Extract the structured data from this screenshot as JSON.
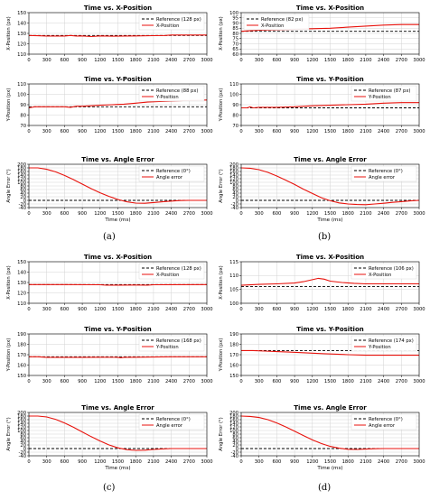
{
  "figure": {
    "panel_labels": [
      "(a)",
      "(b)",
      "(c)",
      "(d)"
    ]
  },
  "chart_data": [
    {
      "type": "line",
      "panel": "(a)",
      "title": "Time vs. X-Position",
      "xlabel": "",
      "ylabel": "X-Position (px)",
      "xlim": [
        0,
        3000
      ],
      "ylim": [
        110,
        150
      ],
      "xticks": [
        0,
        300,
        600,
        900,
        1200,
        1500,
        1800,
        2100,
        2400,
        2700,
        3000
      ],
      "yticks": [
        110,
        120,
        130,
        140,
        150
      ],
      "grid": true,
      "legend_position": "top-right",
      "series": [
        {
          "name": "Reference (128 px)",
          "style": "dashed",
          "color": "#000000",
          "x": [
            0,
            3000
          ],
          "y": [
            128,
            128
          ]
        },
        {
          "name": "X-Position",
          "style": "solid",
          "color": "#e8120c",
          "x": [
            0,
            150,
            300,
            600,
            700,
            800,
            900,
            1050,
            1200,
            1400,
            1600,
            1800,
            2100,
            2300,
            2400,
            2700,
            3000
          ],
          "y": [
            128,
            127.7,
            127.5,
            127.5,
            128,
            127.5,
            127.6,
            127,
            127.6,
            127.3,
            127.5,
            127.6,
            127.8,
            128,
            128.4,
            128.4,
            128.4
          ]
        }
      ]
    },
    {
      "type": "line",
      "panel": "(a)",
      "title": "Time vs. Y-Position",
      "xlabel": "",
      "ylabel": "Y-Position (px)",
      "xlim": [
        0,
        3000
      ],
      "ylim": [
        70,
        110
      ],
      "xticks": [
        0,
        300,
        600,
        900,
        1200,
        1500,
        1800,
        2100,
        2400,
        2700,
        3000
      ],
      "yticks": [
        70,
        80,
        90,
        100,
        110
      ],
      "grid": true,
      "legend_position": "top-right",
      "series": [
        {
          "name": "Reference (88 px)",
          "style": "dashed",
          "color": "#000000",
          "x": [
            0,
            3000
          ],
          "y": [
            88,
            88
          ]
        },
        {
          "name": "Y-Position",
          "style": "solid",
          "color": "#e8120c",
          "x": [
            0,
            100,
            300,
            600,
            700,
            800,
            900,
            1050,
            1200,
            1400,
            1600,
            1800,
            2000,
            2200,
            2400,
            2600,
            3000
          ],
          "y": [
            87,
            88,
            88,
            88,
            87.5,
            88.5,
            88.5,
            89,
            89.5,
            90,
            90.5,
            91.5,
            92.5,
            93,
            93.5,
            94,
            94.5
          ]
        }
      ]
    },
    {
      "type": "line",
      "panel": "(a)",
      "title": "Time vs. Angle Error",
      "xlabel": "Time (ms)",
      "ylabel": "Angle Error (°)",
      "xlim": [
        0,
        3000
      ],
      "ylim": [
        -40,
        200
      ],
      "xticks": [
        0,
        300,
        600,
        900,
        1200,
        1500,
        1800,
        2100,
        2400,
        2700,
        3000
      ],
      "yticks": [
        -40,
        -20,
        0,
        20,
        40,
        60,
        80,
        100,
        120,
        140,
        160,
        180,
        200
      ],
      "grid": true,
      "legend_position": "top-right",
      "series": [
        {
          "name": "Reference (0°)",
          "style": "dashed",
          "color": "#000000",
          "x": [
            0,
            3000
          ],
          "y": [
            0,
            0
          ]
        },
        {
          "name": "Angle error",
          "style": "solid",
          "color": "#e8120c",
          "x": [
            0,
            150,
            300,
            450,
            600,
            750,
            900,
            1050,
            1200,
            1350,
            1500,
            1650,
            1800,
            1950,
            2100,
            2250,
            2400,
            2550,
            2700,
            3000
          ],
          "y": [
            180,
            180,
            172,
            158,
            138,
            115,
            90,
            65,
            42,
            22,
            5,
            -8,
            -15,
            -16,
            -12,
            -8,
            -4,
            -1,
            0,
            0
          ]
        }
      ]
    },
    {
      "type": "line",
      "panel": "(b)",
      "title": "Time vs. X-Position",
      "xlabel": "",
      "ylabel": "X-Position (px)",
      "xlim": [
        0,
        3000
      ],
      "ylim": [
        110,
        150
      ],
      "xticks": [
        0,
        300,
        600,
        900,
        1200,
        1500,
        1800,
        2100,
        2400,
        2700,
        3000
      ],
      "yticks": [
        110,
        120,
        130,
        140,
        150
      ],
      "grid": true,
      "legend_position": "top-right",
      "series": [
        {
          "name": "Reference (128 px)",
          "style": "dashed",
          "color": "#000000",
          "x": [
            0,
            3000
          ],
          "y": [
            128,
            128
          ]
        },
        {
          "name": "X-Position",
          "style": "solid",
          "color": "#e8120c",
          "x": [
            0,
            600,
            1200,
            1300,
            1500,
            1800,
            2000,
            2100,
            2400,
            3000
          ],
          "y": [
            128,
            128,
            127.8,
            127.5,
            127.5,
            127.6,
            127.5,
            127.8,
            127.9,
            128
          ]
        }
      ]
    },
    {
      "type": "line",
      "panel": "(b)",
      "title": "Time vs. Y-Position",
      "xlabel": "",
      "ylabel": "Y-Position (px)",
      "xlim": [
        0,
        3000
      ],
      "ylim": [
        150,
        190
      ],
      "xticks": [
        0,
        300,
        600,
        900,
        1200,
        1500,
        1800,
        2100,
        2400,
        2700,
        3000
      ],
      "yticks": [
        150,
        160,
        170,
        180,
        190
      ],
      "grid": true,
      "legend_position": "top-right",
      "series": [
        {
          "name": "Reference (168 px)",
          "style": "dashed",
          "color": "#000000",
          "x": [
            0,
            3000
          ],
          "y": [
            168,
            168
          ]
        },
        {
          "name": "Y-Position",
          "style": "solid",
          "color": "#e8120c",
          "x": [
            0,
            150,
            300,
            600,
            900,
            1200,
            1500,
            1550,
            1600,
            1800,
            2100,
            2400,
            2700,
            3000
          ],
          "y": [
            168,
            168,
            167.5,
            167.5,
            167.5,
            167.6,
            167.5,
            167,
            167.5,
            167.6,
            167.7,
            168,
            168,
            168
          ]
        }
      ]
    },
    {
      "type": "line",
      "panel": "(b)",
      "title": "Time vs. Angle Error",
      "xlabel": "Time (ms)",
      "ylabel": "Angle Error (°)",
      "xlim": [
        0,
        3000
      ],
      "ylim": [
        -40,
        200
      ],
      "xticks": [
        0,
        300,
        600,
        900,
        1200,
        1500,
        1800,
        2100,
        2400,
        2700,
        3000
      ],
      "yticks": [
        -40,
        -20,
        0,
        20,
        40,
        60,
        80,
        100,
        120,
        140,
        160,
        180,
        200
      ],
      "grid": true,
      "legend_position": "top-right",
      "series": [
        {
          "name": "Reference (0°)",
          "style": "dashed",
          "color": "#000000",
          "x": [
            0,
            3000
          ],
          "y": [
            0,
            0
          ]
        },
        {
          "name": "Angle error",
          "style": "solid",
          "color": "#e8120c",
          "x": [
            0,
            150,
            300,
            450,
            600,
            750,
            900,
            1050,
            1200,
            1350,
            1500,
            1650,
            1800,
            1950,
            2100,
            2250,
            2400,
            2550,
            3000
          ],
          "y": [
            180,
            180,
            175,
            162,
            142,
            118,
            92,
            66,
            42,
            20,
            4,
            -6,
            -10,
            -9,
            -5,
            -2,
            0,
            0,
            0
          ]
        }
      ]
    },
    {
      "type": "line",
      "panel": "(c)",
      "title": "Time vs. X-Position",
      "xlabel": "",
      "ylabel": "X-Position (px)",
      "xlim": [
        0,
        3000
      ],
      "ylim": [
        60,
        100
      ],
      "xticks": [
        0,
        300,
        600,
        900,
        1200,
        1500,
        1800,
        2100,
        2400,
        2700,
        3000
      ],
      "yticks": [
        60,
        65,
        70,
        75,
        80,
        85,
        90,
        95,
        100
      ],
      "grid": true,
      "legend_position": "top-left",
      "series": [
        {
          "name": "Reference (82 px)",
          "style": "dashed",
          "color": "#000000",
          "x": [
            0,
            3000
          ],
          "y": [
            82,
            82
          ]
        },
        {
          "name": "X-Position",
          "style": "solid",
          "color": "#e8120c",
          "x": [
            0,
            150,
            300,
            600,
            900,
            1200,
            1500,
            1800,
            2100,
            2400,
            2700,
            3000
          ],
          "y": [
            82,
            82.5,
            83,
            83.5,
            84,
            84.5,
            85,
            86,
            87,
            88,
            88.5,
            88.5
          ]
        }
      ]
    },
    {
      "type": "line",
      "panel": "(c)",
      "title": "Time vs. Y-Position",
      "xlabel": "",
      "ylabel": "Y-Position (px)",
      "xlim": [
        0,
        3000
      ],
      "ylim": [
        70,
        110
      ],
      "xticks": [
        0,
        300,
        600,
        900,
        1200,
        1500,
        1800,
        2100,
        2400,
        2700,
        3000
      ],
      "yticks": [
        70,
        80,
        90,
        100,
        110
      ],
      "grid": true,
      "legend_position": "top-right",
      "series": [
        {
          "name": "Reference (87 px)",
          "style": "dashed",
          "color": "#000000",
          "x": [
            0,
            3000
          ],
          "y": [
            87,
            87
          ]
        },
        {
          "name": "Y-Position",
          "style": "solid",
          "color": "#e8120c",
          "x": [
            0,
            100,
            150,
            200,
            300,
            600,
            900,
            1200,
            1500,
            1800,
            2100,
            2400,
            2700,
            3000
          ],
          "y": [
            87,
            87,
            88,
            87,
            87.5,
            87.5,
            88,
            89,
            89.5,
            90,
            90.5,
            91.5,
            92,
            92
          ]
        }
      ]
    },
    {
      "type": "line",
      "panel": "(c)",
      "title": "Time vs. Angle Error",
      "xlabel": "Time (ms)",
      "ylabel": "Angle Error (°)",
      "xlim": [
        0,
        3000
      ],
      "ylim": [
        -40,
        200
      ],
      "xticks": [
        0,
        300,
        600,
        900,
        1200,
        1500,
        1800,
        2100,
        2400,
        2700,
        3000
      ],
      "yticks": [
        -40,
        -20,
        0,
        20,
        40,
        60,
        80,
        100,
        120,
        140,
        160,
        180,
        200
      ],
      "grid": true,
      "legend_position": "top-right",
      "series": [
        {
          "name": "Reference (0°)",
          "style": "dashed",
          "color": "#000000",
          "x": [
            0,
            3000
          ],
          "y": [
            0,
            0
          ]
        },
        {
          "name": "Angle error",
          "style": "solid",
          "color": "#e8120c",
          "x": [
            0,
            150,
            300,
            450,
            600,
            750,
            900,
            1050,
            1200,
            1350,
            1500,
            1650,
            1800,
            1950,
            2100,
            2250,
            2400,
            2550,
            2700,
            2850,
            3000
          ],
          "y": [
            180,
            178,
            170,
            155,
            135,
            112,
            88,
            62,
            38,
            15,
            -2,
            -14,
            -20,
            -23,
            -24,
            -20,
            -16,
            -11,
            -7,
            -3,
            0
          ]
        }
      ]
    },
    {
      "type": "line",
      "panel": "(d)",
      "title": "Time vs. X-Position",
      "xlabel": "",
      "ylabel": "X-Position (px)",
      "xlim": [
        0,
        3000
      ],
      "ylim": [
        100,
        115
      ],
      "xticks": [
        0,
        300,
        600,
        900,
        1200,
        1500,
        1800,
        2100,
        2400,
        2700,
        3000
      ],
      "yticks": [
        100,
        105,
        110,
        115
      ],
      "grid": true,
      "legend_position": "top-right",
      "series": [
        {
          "name": "Reference (106 px)",
          "style": "dashed",
          "color": "#000000",
          "x": [
            0,
            3000
          ],
          "y": [
            106,
            106
          ]
        },
        {
          "name": "X-Position",
          "style": "solid",
          "color": "#e8120c",
          "x": [
            0,
            300,
            600,
            900,
            1050,
            1200,
            1300,
            1400,
            1500,
            1700,
            1900,
            2100,
            2400,
            3000
          ],
          "y": [
            106.5,
            106.8,
            107,
            107.3,
            107.8,
            108.5,
            109,
            108.7,
            108,
            107.5,
            107.2,
            107,
            107,
            107
          ]
        }
      ]
    },
    {
      "type": "line",
      "panel": "(d)",
      "title": "Time vs. Y-Position",
      "xlabel": "",
      "ylabel": "Y-Position (px)",
      "xlim": [
        0,
        3000
      ],
      "ylim": [
        150,
        190
      ],
      "xticks": [
        0,
        300,
        600,
        900,
        1200,
        1500,
        1800,
        2100,
        2400,
        2700,
        3000
      ],
      "yticks": [
        150,
        160,
        170,
        180,
        190
      ],
      "grid": true,
      "legend_position": "top-right",
      "series": [
        {
          "name": "Reference (174 px)",
          "style": "dashed",
          "color": "#000000",
          "x": [
            0,
            3000
          ],
          "y": [
            174,
            174
          ]
        },
        {
          "name": "Y-Position",
          "style": "solid",
          "color": "#e8120c",
          "x": [
            0,
            200,
            400,
            600,
            800,
            1000,
            1200,
            1400,
            1600,
            1800,
            2100,
            2400,
            2700,
            3000
          ],
          "y": [
            174,
            174,
            173.5,
            173,
            172.5,
            172,
            171.5,
            171,
            170.5,
            170,
            169.5,
            169.5,
            169.5,
            169.5
          ]
        }
      ]
    },
    {
      "type": "line",
      "panel": "(d)",
      "title": "Time vs. Angle Error",
      "xlabel": "Time (ms)",
      "ylabel": "Angle Error (°)",
      "xlim": [
        0,
        3000
      ],
      "ylim": [
        -40,
        200
      ],
      "xticks": [
        0,
        300,
        600,
        900,
        1200,
        1500,
        1800,
        2100,
        2400,
        2700,
        3000
      ],
      "yticks": [
        -40,
        -20,
        0,
        20,
        40,
        60,
        80,
        100,
        120,
        140,
        160,
        180,
        200
      ],
      "grid": true,
      "legend_position": "top-right",
      "series": [
        {
          "name": "Reference (0°)",
          "style": "dashed",
          "color": "#000000",
          "x": [
            0,
            3000
          ],
          "y": [
            0,
            0
          ]
        },
        {
          "name": "Angle error",
          "style": "solid",
          "color": "#e8120c",
          "x": [
            0,
            150,
            300,
            450,
            600,
            750,
            900,
            1050,
            1200,
            1350,
            1500,
            1650,
            1800,
            1950,
            2100,
            2250,
            2400,
            3000
          ],
          "y": [
            180,
            178,
            172,
            160,
            142,
            120,
            96,
            72,
            48,
            28,
            12,
            2,
            -4,
            -5,
            -3,
            -1,
            0,
            0
          ]
        }
      ]
    }
  ]
}
